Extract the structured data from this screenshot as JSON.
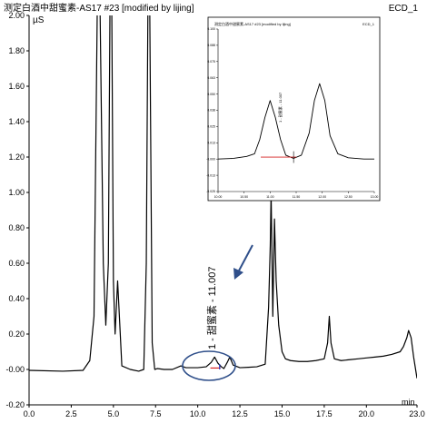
{
  "chart_data": {
    "type": "line",
    "title": "测定白酒中甜蜜素-AS17 #23 [modified by lijing]",
    "channel": "ECD_1",
    "ylabel": "µS",
    "xlabel": "min",
    "xlim": [
      0,
      23
    ],
    "ylim": [
      -0.2,
      2.0
    ],
    "x_ticks": [
      "0.0",
      "2.5",
      "5.0",
      "7.5",
      "10.0",
      "12.5",
      "15.0",
      "17.5",
      "20.0",
      "23.0"
    ],
    "x_tick_values": [
      0,
      2.5,
      5.0,
      7.5,
      10.0,
      12.5,
      15.0,
      17.5,
      20.0,
      23.0
    ],
    "y_ticks": [
      "-0.20",
      "-0.00",
      "0.20",
      "0.40",
      "0.60",
      "0.80",
      "1.00",
      "1.20",
      "1.40",
      "1.60",
      "1.80",
      "2.00"
    ],
    "y_tick_values": [
      -0.2,
      0.0,
      0.2,
      0.4,
      0.6,
      0.8,
      1.0,
      1.2,
      1.4,
      1.6,
      1.8,
      2.0
    ],
    "peak_label": "1 - 甜蜜素 - 11.007",
    "series": [
      {
        "color": "#000000",
        "x": [
          0.0,
          2.0,
          3.2,
          3.6,
          3.85,
          3.95,
          4.05,
          4.2,
          4.4,
          4.55,
          4.7,
          4.8,
          4.9,
          5.0,
          5.1,
          5.25,
          5.5,
          6.0,
          6.5,
          6.8,
          6.95,
          7.05,
          7.15,
          7.3,
          7.45,
          7.6,
          8.0,
          8.5,
          9.0,
          9.3,
          9.5,
          10.0,
          10.5,
          10.8,
          11.0,
          11.2,
          11.4,
          11.55,
          11.75,
          11.9,
          12.1,
          12.5,
          13.0,
          13.5,
          14.0,
          14.2,
          14.3,
          14.35,
          14.45,
          14.55,
          14.65,
          14.8,
          15.0,
          15.2,
          15.5,
          16.0,
          16.5,
          17.0,
          17.5,
          17.7,
          17.8,
          17.9,
          18.1,
          18.5,
          19.0,
          19.5,
          20.0,
          20.5,
          21.0,
          21.5,
          22.0,
          22.2,
          22.4,
          22.5,
          22.65,
          22.8,
          23.0
        ],
        "y": [
          -0.005,
          -0.01,
          -0.005,
          0.05,
          0.3,
          1.2,
          2.1,
          2.1,
          0.6,
          0.25,
          0.6,
          2.1,
          2.1,
          0.5,
          0.2,
          0.5,
          0.02,
          0.0,
          -0.01,
          0.0,
          0.6,
          2.1,
          2.1,
          0.15,
          0.0,
          0.005,
          0.0,
          0.0,
          0.02,
          0.01,
          0.01,
          0.01,
          0.015,
          0.04,
          0.07,
          0.035,
          0.015,
          0.005,
          0.04,
          0.07,
          0.025,
          0.01,
          0.012,
          0.015,
          0.03,
          0.35,
          0.7,
          1.0,
          0.3,
          0.85,
          0.5,
          0.25,
          0.1,
          0.06,
          0.05,
          0.045,
          0.045,
          0.05,
          0.06,
          0.15,
          0.3,
          0.15,
          0.06,
          0.05,
          0.055,
          0.06,
          0.065,
          0.07,
          0.075,
          0.085,
          0.1,
          0.13,
          0.18,
          0.22,
          0.18,
          0.07,
          -0.05
        ]
      }
    ]
  },
  "inset": {
    "title": "测定白酒中甜蜜素-AS17 #23 [modified by lijing]",
    "channel": "ECD_1",
    "peak_label": "1 - 甜蜜素 - 11.007",
    "xlim": [
      10.0,
      13.0
    ],
    "ylim": [
      -0.025,
      0.1
    ],
    "x_ticks": [
      "10.00",
      "10.50",
      "11.00",
      "11.50",
      "12.00",
      "12.50",
      "13.00"
    ],
    "x_tick_values": [
      10.0,
      10.5,
      11.0,
      11.5,
      12.0,
      12.5,
      13.0
    ],
    "y_ticks": [
      "-0.025",
      "-0.013",
      "-0.000",
      "0.013",
      "0.025",
      "0.038",
      "0.050",
      "0.063",
      "0.075",
      "0.088",
      "0.100"
    ],
    "y_tick_values": [
      -0.025,
      -0.0125,
      0.0,
      0.0125,
      0.025,
      0.0375,
      0.05,
      0.0625,
      0.075,
      0.0875,
      0.1
    ],
    "x": [
      10.0,
      10.3,
      10.55,
      10.7,
      10.8,
      10.9,
      11.0,
      11.1,
      11.2,
      11.3,
      11.45,
      11.6,
      11.75,
      11.85,
      11.95,
      12.05,
      12.15,
      12.3,
      12.5,
      12.8,
      13.0
    ],
    "y": [
      0.0,
      0.0005,
      0.002,
      0.004,
      0.015,
      0.032,
      0.045,
      0.032,
      0.015,
      0.003,
      0.0005,
      0.003,
      0.02,
      0.045,
      0.058,
      0.045,
      0.018,
      0.004,
      0.001,
      0.0,
      0.0
    ],
    "baseline": [
      10.82,
      11.5
    ]
  }
}
